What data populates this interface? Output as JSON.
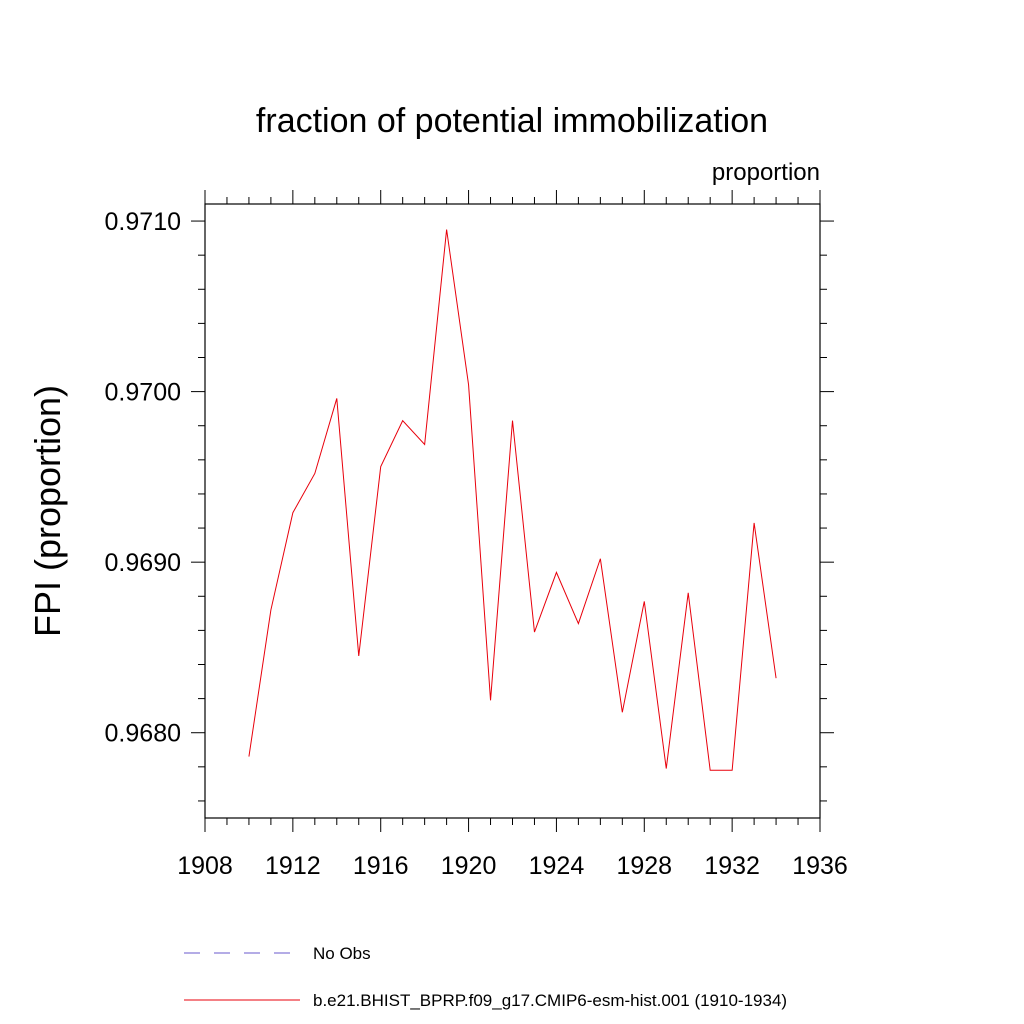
{
  "chart_data": {
    "type": "line",
    "title": "fraction of potential immobilization",
    "units_label": "proportion",
    "xlabel": "",
    "ylabel": "FPI  (proportion)",
    "xlim": [
      1908,
      1936
    ],
    "ylim": [
      0.9675,
      0.9711
    ],
    "xticks": [
      1908,
      1912,
      1916,
      1920,
      1924,
      1928,
      1932,
      1936
    ],
    "xtick_labels": [
      "1908",
      "1912",
      "1916",
      "1920",
      "1924",
      "1928",
      "1932",
      "1936"
    ],
    "yticks": [
      0.968,
      0.969,
      0.97,
      0.971
    ],
    "ytick_labels": [
      "0.9680",
      "0.9690",
      "0.9700",
      "0.9710"
    ],
    "grid": false,
    "series": [
      {
        "name": "b.e21.BHIST_BPRP.f09_g17.CMIP6-esm-hist.001 (1910-1934)",
        "color": "#e8000b",
        "style": "solid",
        "x": [
          1910,
          1911,
          1912,
          1913,
          1914,
          1915,
          1916,
          1917,
          1918,
          1919,
          1920,
          1921,
          1922,
          1923,
          1924,
          1925,
          1926,
          1927,
          1928,
          1929,
          1930,
          1931,
          1932,
          1933,
          1934
        ],
        "values": [
          0.96786,
          0.96872,
          0.96929,
          0.96952,
          0.96996,
          0.96845,
          0.96956,
          0.96983,
          0.96969,
          0.97095,
          0.97004,
          0.96819,
          0.96983,
          0.96859,
          0.96894,
          0.96864,
          0.96902,
          0.96812,
          0.96877,
          0.96779,
          0.96882,
          0.96778,
          0.96778,
          0.96923,
          0.96832
        ]
      }
    ],
    "legend": [
      {
        "label": "No Obs",
        "color": "#6a5acd",
        "style": "dashed"
      },
      {
        "label": "b.e21.BHIST_BPRP.f09_g17.CMIP6-esm-hist.001 (1910-1934)",
        "color": "#e8000b",
        "style": "solid"
      }
    ]
  }
}
